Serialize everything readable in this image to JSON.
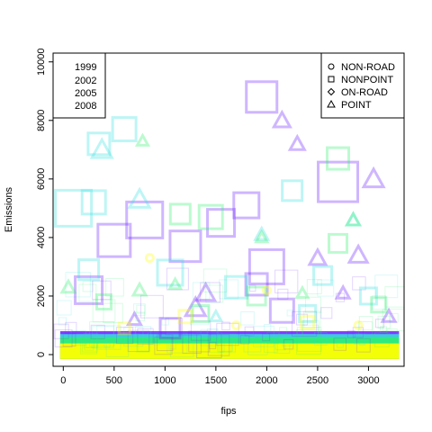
{
  "chart_data": {
    "type": "scatter",
    "title": "",
    "xlabel": "fips",
    "ylabel": "Emissions",
    "xlim": [
      -100,
      3350
    ],
    "ylim": [
      -400,
      10300
    ],
    "x_ticks": [
      0,
      500,
      1000,
      1500,
      2000,
      2500,
      3000
    ],
    "y_ticks": [
      0,
      2000,
      4000,
      6000,
      8000,
      10000
    ],
    "grid": false,
    "legend_years": {
      "placement": "top-left",
      "entries": [
        {
          "label": "1999",
          "color": "#6a1bff"
        },
        {
          "label": "2002",
          "color": "#35e0e0"
        },
        {
          "label": "2005",
          "color": "#2ef06e"
        },
        {
          "label": "2008",
          "color": "#ffff00"
        }
      ]
    },
    "legend_types": {
      "placement": "top-right",
      "entries": [
        {
          "label": "NON-ROAD",
          "shape": "circle"
        },
        {
          "label": "NONPOINT",
          "shape": "square"
        },
        {
          "label": "ON-ROAD",
          "shape": "diamond"
        },
        {
          "label": "POINT",
          "shape": "triangle"
        }
      ]
    },
    "series": [
      {
        "year": "1999",
        "color": "#6a1bff",
        "points": [
          {
            "x": 1300,
            "y": 1600,
            "shape": "triangle",
            "size": 22
          },
          {
            "x": 1400,
            "y": 2100,
            "shape": "triangle",
            "size": 20
          },
          {
            "x": 2900,
            "y": 3400,
            "shape": "triangle",
            "size": 20
          },
          {
            "x": 1950,
            "y": 8800,
            "shape": "square",
            "size": 34
          },
          {
            "x": 2150,
            "y": 8000,
            "shape": "triangle",
            "size": 18
          },
          {
            "x": 2300,
            "y": 7200,
            "shape": "triangle",
            "size": 16
          },
          {
            "x": 2700,
            "y": 5900,
            "shape": "square",
            "size": 44
          },
          {
            "x": 3050,
            "y": 6000,
            "shape": "triangle",
            "size": 22
          },
          {
            "x": 800,
            "y": 4600,
            "shape": "square",
            "size": 40
          },
          {
            "x": 500,
            "y": 3900,
            "shape": "square",
            "size": 36
          },
          {
            "x": 1550,
            "y": 4500,
            "shape": "square",
            "size": 30
          },
          {
            "x": 2000,
            "y": 3000,
            "shape": "square",
            "size": 38
          },
          {
            "x": 2500,
            "y": 3300,
            "shape": "triangle",
            "size": 18
          },
          {
            "x": 250,
            "y": 2200,
            "shape": "square",
            "size": 30
          },
          {
            "x": 700,
            "y": 1200,
            "shape": "triangle",
            "size": 14
          },
          {
            "x": 2150,
            "y": 1500,
            "shape": "square",
            "size": 26
          },
          {
            "x": 1050,
            "y": 900,
            "shape": "square",
            "size": 22
          },
          {
            "x": 2750,
            "y": 2100,
            "shape": "triangle",
            "size": 14
          },
          {
            "x": 1800,
            "y": 5100,
            "shape": "square",
            "size": 28
          },
          {
            "x": 1200,
            "y": 3700,
            "shape": "square",
            "size": 34
          },
          {
            "x": 3200,
            "y": 1300,
            "shape": "triangle",
            "size": 14
          },
          {
            "x": 1900,
            "y": 2400,
            "shape": "square",
            "size": 24
          }
        ]
      },
      {
        "year": "2002",
        "color": "#35e0e0",
        "points": [
          {
            "x": 380,
            "y": 7000,
            "shape": "triangle",
            "size": 22
          },
          {
            "x": 600,
            "y": 7700,
            "shape": "square",
            "size": 26
          },
          {
            "x": 350,
            "y": 7200,
            "shape": "square",
            "size": 24
          },
          {
            "x": 750,
            "y": 5300,
            "shape": "triangle",
            "size": 22
          },
          {
            "x": 300,
            "y": 5200,
            "shape": "square",
            "size": 26
          },
          {
            "x": 1050,
            "y": 2800,
            "shape": "square",
            "size": 28
          },
          {
            "x": 1700,
            "y": 2300,
            "shape": "square",
            "size": 24
          },
          {
            "x": 2550,
            "y": 2700,
            "shape": "square",
            "size": 20
          },
          {
            "x": 250,
            "y": 2900,
            "shape": "square",
            "size": 22
          },
          {
            "x": 1950,
            "y": 4100,
            "shape": "triangle",
            "size": 14
          },
          {
            "x": 2850,
            "y": 4600,
            "shape": "triangle",
            "size": 14
          },
          {
            "x": 1500,
            "y": 1300,
            "shape": "triangle",
            "size": 12
          },
          {
            "x": 2400,
            "y": 1400,
            "shape": "square",
            "size": 18
          },
          {
            "x": 3000,
            "y": 2000,
            "shape": "square",
            "size": 18
          },
          {
            "x": 100,
            "y": 5000,
            "shape": "square",
            "size": 40
          },
          {
            "x": 2250,
            "y": 5600,
            "shape": "square",
            "size": 22
          }
        ]
      },
      {
        "year": "2005",
        "color": "#2ef06e",
        "points": [
          {
            "x": 780,
            "y": 7300,
            "shape": "triangle",
            "size": 12
          },
          {
            "x": 1150,
            "y": 4800,
            "shape": "square",
            "size": 22
          },
          {
            "x": 1450,
            "y": 4700,
            "shape": "square",
            "size": 26
          },
          {
            "x": 2700,
            "y": 6700,
            "shape": "square",
            "size": 24
          },
          {
            "x": 2850,
            "y": 4600,
            "shape": "triangle",
            "size": 14
          },
          {
            "x": 50,
            "y": 2300,
            "shape": "triangle",
            "size": 14
          },
          {
            "x": 750,
            "y": 2200,
            "shape": "triangle",
            "size": 14
          },
          {
            "x": 1100,
            "y": 2400,
            "shape": "triangle",
            "size": 12
          },
          {
            "x": 1950,
            "y": 4000,
            "shape": "triangle",
            "size": 12
          },
          {
            "x": 2700,
            "y": 3800,
            "shape": "square",
            "size": 20
          },
          {
            "x": 1900,
            "y": 2000,
            "shape": "square",
            "size": 20
          },
          {
            "x": 1350,
            "y": 1400,
            "shape": "square",
            "size": 18
          },
          {
            "x": 3100,
            "y": 1700,
            "shape": "square",
            "size": 16
          },
          {
            "x": 2350,
            "y": 2100,
            "shape": "triangle",
            "size": 12
          },
          {
            "x": 400,
            "y": 1800,
            "shape": "square",
            "size": 16
          }
        ]
      },
      {
        "year": "2008",
        "color": "#ffff00",
        "points": [
          {
            "x": 850,
            "y": 3300,
            "shape": "circle",
            "size": 8
          },
          {
            "x": 1200,
            "y": 1300,
            "shape": "square",
            "size": 14
          },
          {
            "x": 2400,
            "y": 1100,
            "shape": "square",
            "size": 14
          },
          {
            "x": 1700,
            "y": 1000,
            "shape": "circle",
            "size": 8
          },
          {
            "x": 600,
            "y": 900,
            "shape": "square",
            "size": 12
          },
          {
            "x": 2900,
            "y": 1000,
            "shape": "circle",
            "size": 8
          },
          {
            "x": 2000,
            "y": 2200,
            "shape": "circle",
            "size": 8
          }
        ]
      }
    ],
    "bands": [
      {
        "year": "1999",
        "color": "#6a1bff",
        "y_from": -150,
        "y_to": 800
      },
      {
        "year": "2002",
        "color": "#35e0e0",
        "y_from": -150,
        "y_to": 700
      },
      {
        "year": "2005",
        "color": "#2ef06e",
        "y_from": -150,
        "y_to": 600
      },
      {
        "year": "2008",
        "color": "#ffff00",
        "y_from": -150,
        "y_to": 380
      }
    ]
  }
}
